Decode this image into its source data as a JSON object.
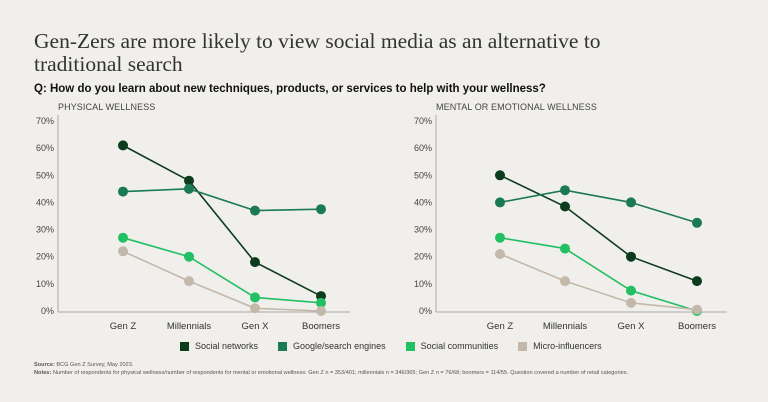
{
  "title": "Gen-Zers are more likely to view social media as an alternative to traditional search",
  "question": "Q: How do you learn about new techniques, products, or services to help with your wellness?",
  "colors": {
    "Social networks": "#0d3b1e",
    "Google/search engines": "#1a7a52",
    "Social communities": "#22bf63",
    "Micro-influencers": "#c4b8aa"
  },
  "legend": [
    {
      "label": "Social networks"
    },
    {
      "label": "Google/search engines"
    },
    {
      "label": "Social communities"
    },
    {
      "label": "Micro-influencers"
    }
  ],
  "footer": {
    "source_label": "Source:",
    "source_text": " BCG Gen Z Survey, May 2023.",
    "notes_label": "Notes:",
    "notes_text": " Number of respondents for physical wellness/number of respondents for mental or emotional wellness: Gen Z n = 353/401; millennials n = 346/365; Gen Z n = 76/68; boomers = 114/55. Question covered a number of retail categories."
  },
  "chart_data": [
    {
      "type": "line",
      "title": "PHYSICAL WELLNESS",
      "categories": [
        "Gen Z",
        "Millennials",
        "Gen X",
        "Boomers"
      ],
      "ylim": [
        0,
        70
      ],
      "yticks": [
        "0%",
        "10%",
        "20%",
        "30%",
        "40%",
        "50%",
        "60%",
        "70%"
      ],
      "grid": false,
      "legend": "bottom",
      "series": [
        {
          "name": "Social networks",
          "values": [
            61,
            48,
            18,
            5.5
          ]
        },
        {
          "name": "Google/search engines",
          "values": [
            44,
            45,
            37,
            37.5
          ]
        },
        {
          "name": "Social communities",
          "values": [
            27,
            20,
            5,
            3
          ]
        },
        {
          "name": "Micro-influencers",
          "values": [
            22,
            11,
            1,
            0
          ]
        }
      ]
    },
    {
      "type": "line",
      "title": "MENTAL OR EMOTIONAL WELLNESS",
      "categories": [
        "Gen Z",
        "Millennials",
        "Gen X",
        "Boomers"
      ],
      "ylim": [
        0,
        70
      ],
      "yticks": [
        "0%",
        "10%",
        "20%",
        "30%",
        "40%",
        "50%",
        "60%",
        "70%"
      ],
      "grid": false,
      "legend": "bottom",
      "series": [
        {
          "name": "Social networks",
          "values": [
            50,
            38.5,
            20,
            11
          ]
        },
        {
          "name": "Google/search engines",
          "values": [
            40,
            44.5,
            40,
            32.5
          ]
        },
        {
          "name": "Social communities",
          "values": [
            27,
            23,
            7.5,
            0
          ]
        },
        {
          "name": "Micro-influencers",
          "values": [
            21,
            11,
            3,
            0.5
          ]
        }
      ]
    }
  ]
}
